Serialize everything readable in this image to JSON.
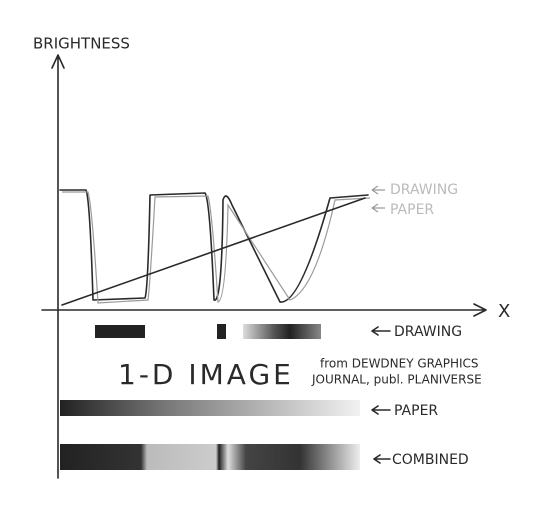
{
  "axes": {
    "y_label": "BRIGHTNESS",
    "x_label": "X"
  },
  "curve_labels": [
    "DRAWING",
    "PAPER"
  ],
  "title": "1-D IMAGE",
  "source": [
    "from DEWDNEY GRAPHICS",
    "JOURNAL, publ. PLANIVERSE"
  ],
  "strips": [
    {
      "label": "DRAWING"
    },
    {
      "label": "PAPER"
    },
    {
      "label": "COMBINED"
    }
  ]
}
